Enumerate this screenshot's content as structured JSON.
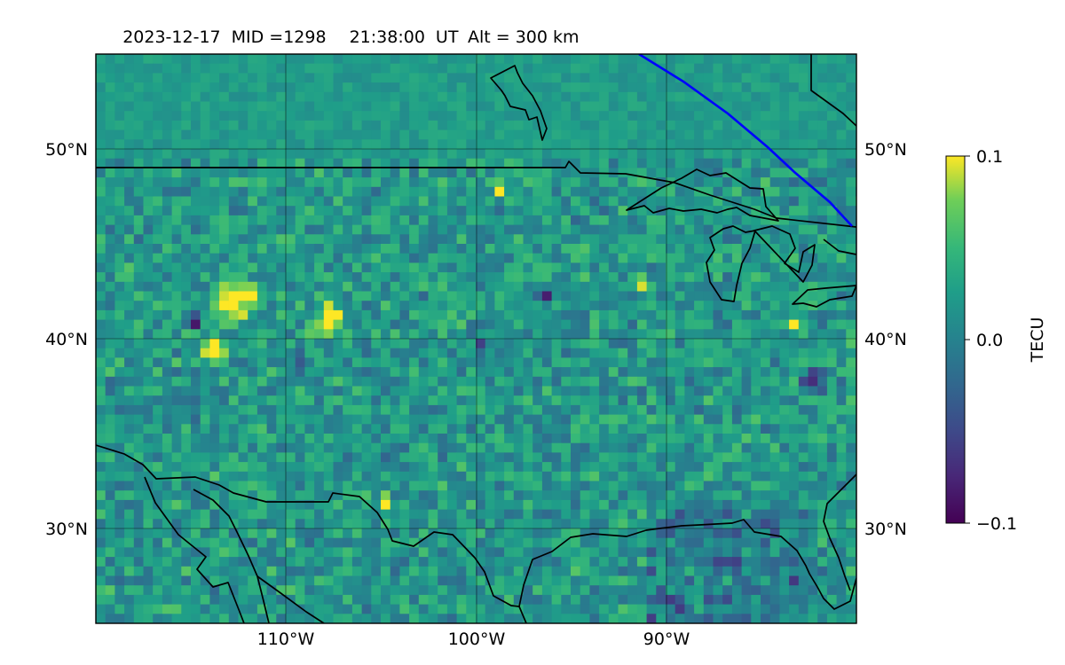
{
  "title": {
    "date": "2023-12-17",
    "mid": "MID =1298",
    "time": "21:38:00",
    "ut": "UT",
    "alt": "Alt = 300 km"
  },
  "map": {
    "lat_labels": [
      "50°N",
      "40°N",
      "30°N"
    ],
    "lon_labels": [
      "110°W",
      "100°W",
      "90°W"
    ],
    "lat_values": [
      50,
      40,
      30
    ],
    "lon_values": [
      -110,
      -100,
      -90
    ],
    "extent": {
      "lon_min": -120,
      "lon_max": -80,
      "lat_min": 25,
      "lat_max": 55
    },
    "terminator_color": "#0000ff",
    "coastline_color": "#000000"
  },
  "colorbar": {
    "label": "TECU",
    "ticks": [
      "0.1",
      "0.0",
      "−0.1"
    ],
    "tick_values": [
      0.1,
      0.0,
      -0.1
    ],
    "range": [
      -0.1,
      0.1
    ],
    "colormap": "viridis"
  },
  "chart_data": {
    "type": "heatmap",
    "title": "2023-12-17  MID =1298    21:38:00  UT  Alt = 300 km",
    "xlabel": "",
    "ylabel": "",
    "x_ticks": [
      "110°W",
      "100°W",
      "90°W"
    ],
    "y_ticks": [
      "50°N",
      "40°N",
      "30°N"
    ],
    "xlim": [
      -120,
      -80
    ],
    "ylim": [
      25,
      55
    ],
    "value_range": [
      -0.1,
      0.1
    ],
    "units": "TECU",
    "grid": true,
    "legend": "colorbar-right"
  }
}
